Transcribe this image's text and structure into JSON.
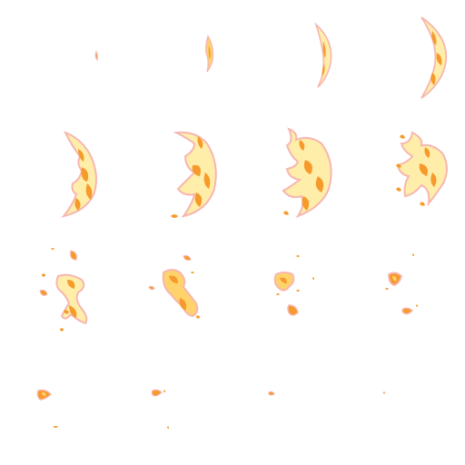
{
  "sprite_sheet": {
    "grid": {
      "columns": 4,
      "rows": 4
    },
    "frame_count": 16,
    "palette": {
      "glow": "#f7b6b0",
      "outline": "#f0a020",
      "hot_orange": "#f59a2b",
      "core_yellow": "#ffeeaa",
      "mid_yellow": "#ffd36b",
      "background": "#ffffff"
    },
    "frames": [
      {
        "id": 1,
        "phase": "spark"
      },
      {
        "id": 2,
        "phase": "small-flare"
      },
      {
        "id": 3,
        "phase": "crescent-thin"
      },
      {
        "id": 4,
        "phase": "crescent-grow"
      },
      {
        "id": 5,
        "phase": "crescent-full"
      },
      {
        "id": 6,
        "phase": "crescent-full"
      },
      {
        "id": 7,
        "phase": "crescent-break"
      },
      {
        "id": 8,
        "phase": "crescent-break"
      },
      {
        "id": 9,
        "phase": "burst-fragments"
      },
      {
        "id": 10,
        "phase": "burst-fragments"
      },
      {
        "id": 11,
        "phase": "dissipate"
      },
      {
        "id": 12,
        "phase": "dissipate"
      },
      {
        "id": 13,
        "phase": "ember"
      },
      {
        "id": 14,
        "phase": "ember"
      },
      {
        "id": 15,
        "phase": "ember-small"
      },
      {
        "id": 16,
        "phase": "fade"
      }
    ]
  }
}
